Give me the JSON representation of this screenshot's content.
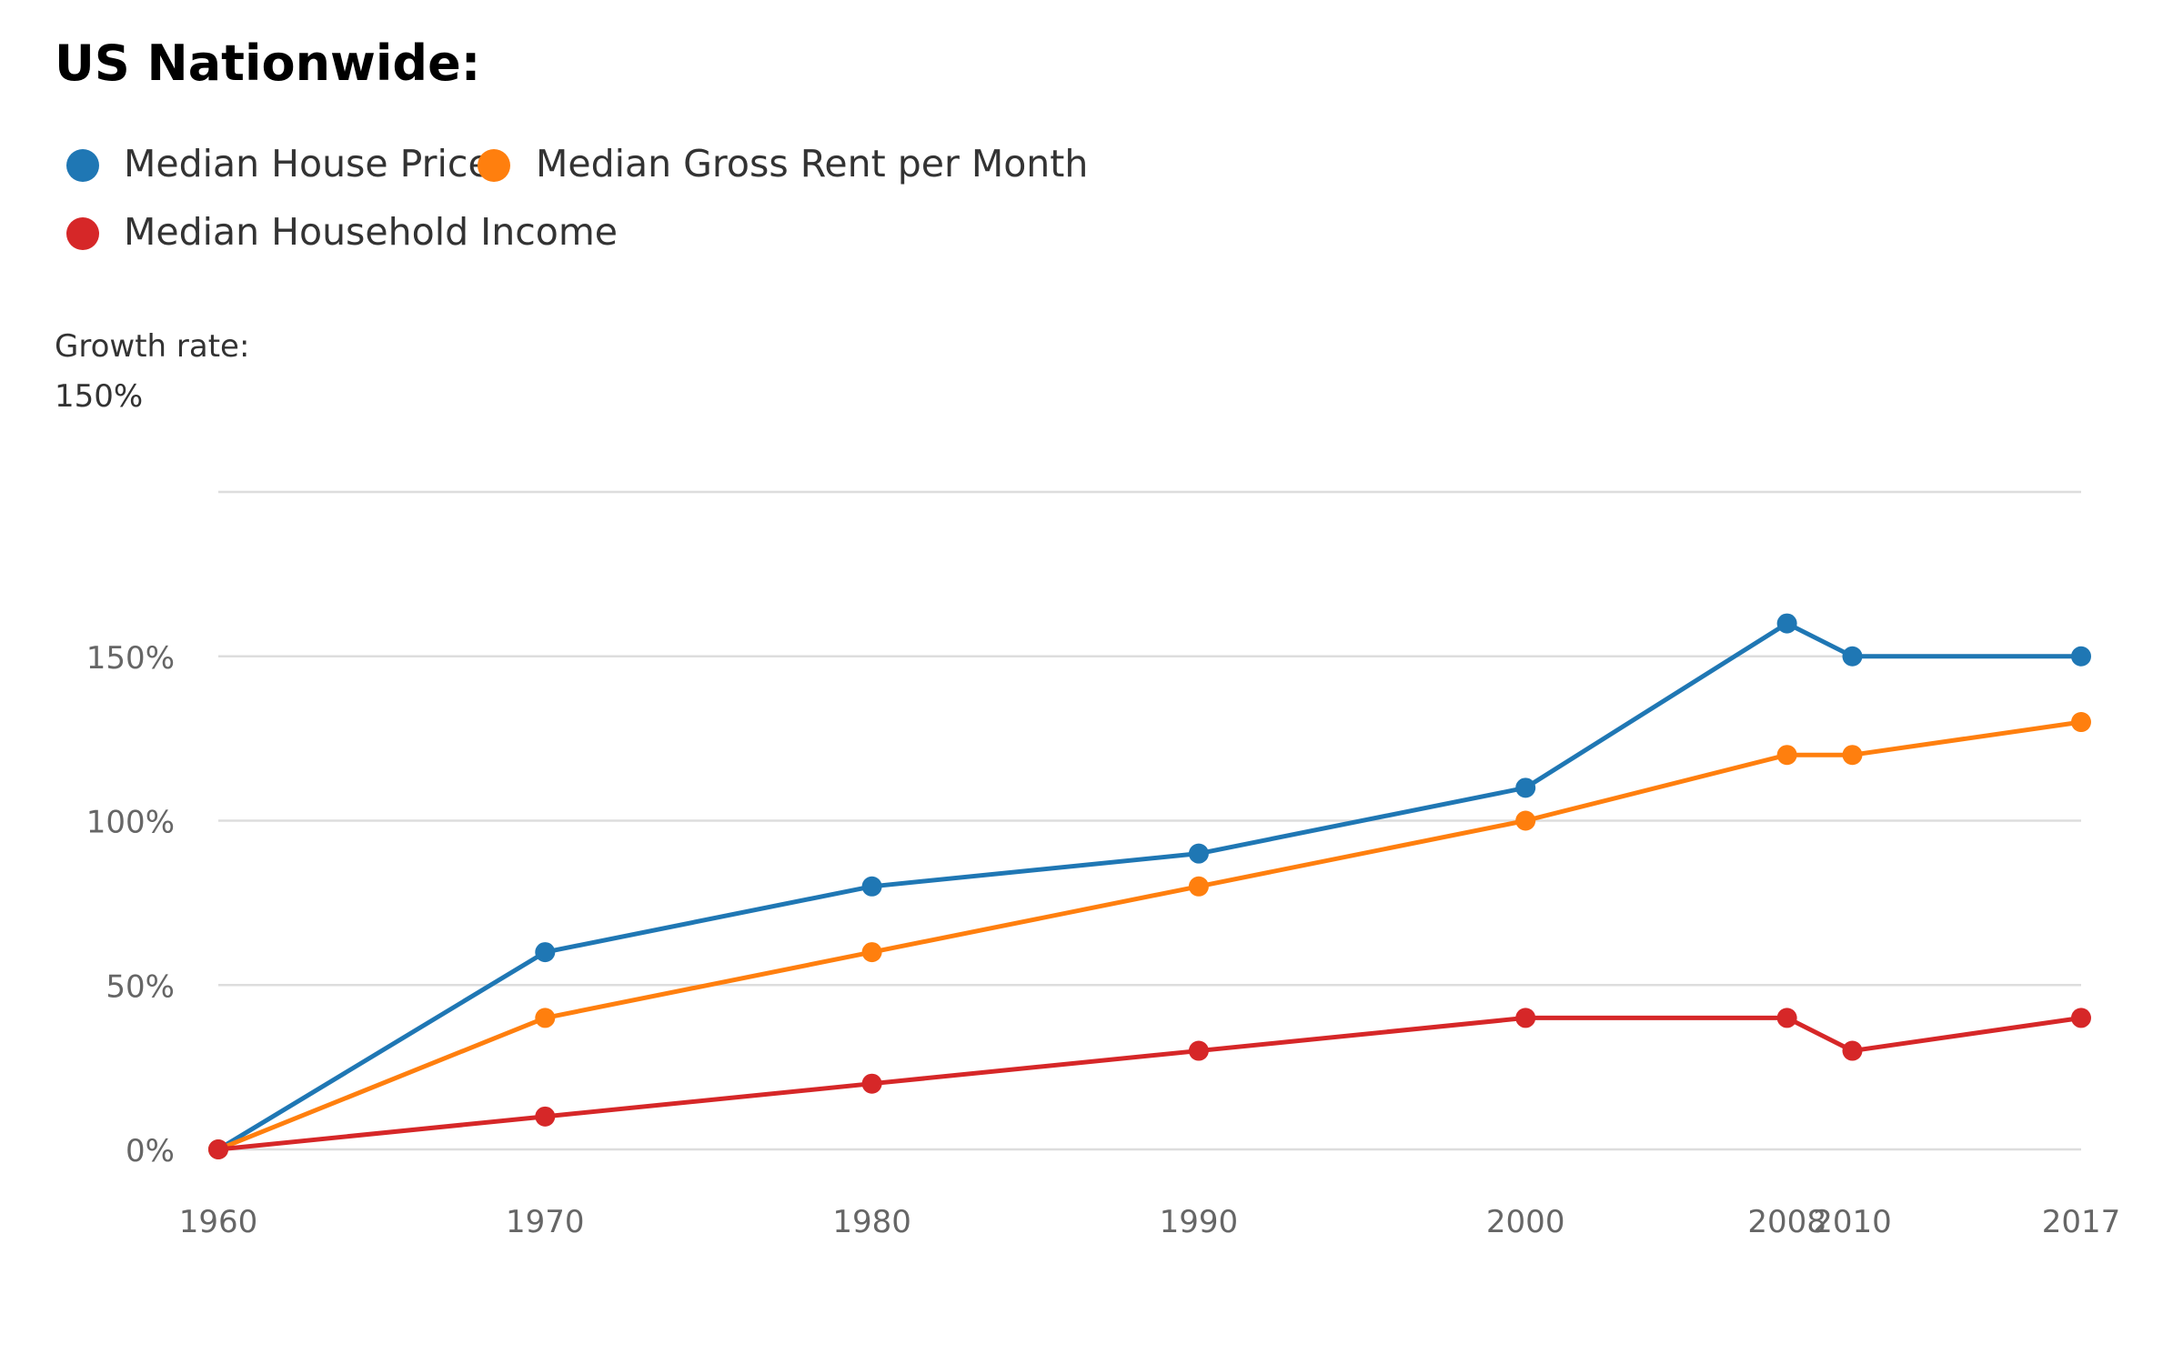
{
  "chart_data": {
    "type": "line",
    "title": "US Nationwide:",
    "subtitle_lines": [
      "Growth rate:",
      "150%"
    ],
    "xlabel": "",
    "ylabel": "",
    "x": [
      1960,
      1970,
      1980,
      1990,
      2000,
      2008,
      2010,
      2017
    ],
    "x_tick_labels": [
      "1960",
      "1970",
      "1980",
      "1990",
      "2000",
      "2008",
      "2010",
      "2017"
    ],
    "xlim": [
      1960,
      2017
    ],
    "ylim": [
      0,
      200
    ],
    "y_gridlines": [
      0,
      50,
      100,
      150,
      200
    ],
    "y_tick_values": [
      0,
      50,
      100,
      150
    ],
    "y_tick_labels": [
      "0%",
      "50%",
      "100%",
      "150%"
    ],
    "grid": true,
    "legend_position": "top-left",
    "series": [
      {
        "name": "Median House Price",
        "color": "#1f77b4",
        "values": [
          0,
          60,
          80,
          90,
          110,
          160,
          150,
          150
        ]
      },
      {
        "name": "Median Gross Rent per Month",
        "color": "#ff7f0e",
        "values": [
          0,
          40,
          60,
          80,
          100,
          120,
          120,
          130
        ]
      },
      {
        "name": "Median Household Income",
        "color": "#d62728",
        "values": [
          0,
          10,
          20,
          30,
          40,
          40,
          30,
          40
        ]
      }
    ]
  }
}
